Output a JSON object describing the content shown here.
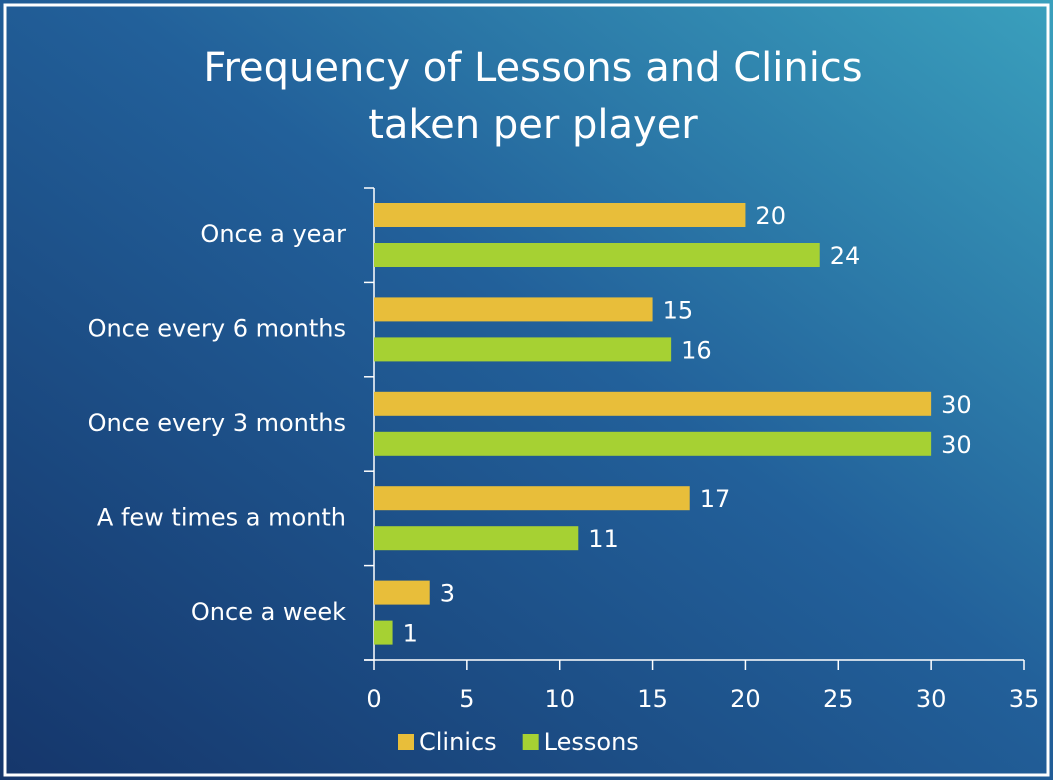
{
  "chart_data": {
    "type": "bar",
    "orientation": "horizontal",
    "title": [
      "Frequency of Lessons and Clinics",
      "taken per player"
    ],
    "categories": [
      "Once a year",
      "Once every 6 months",
      "Once every 3 months",
      "A few times a month",
      "Once a week"
    ],
    "series": [
      {
        "name": "Clinics",
        "color": "#e8be3a",
        "values": [
          20,
          15,
          30,
          17,
          3
        ]
      },
      {
        "name": "Lessons",
        "color": "#a6d133",
        "values": [
          24,
          16,
          30,
          11,
          1
        ]
      }
    ],
    "xlim": [
      0,
      35
    ],
    "xticks": [
      0,
      5,
      10,
      15,
      20,
      25,
      30,
      35
    ],
    "grid": false,
    "legend": "bottom"
  }
}
